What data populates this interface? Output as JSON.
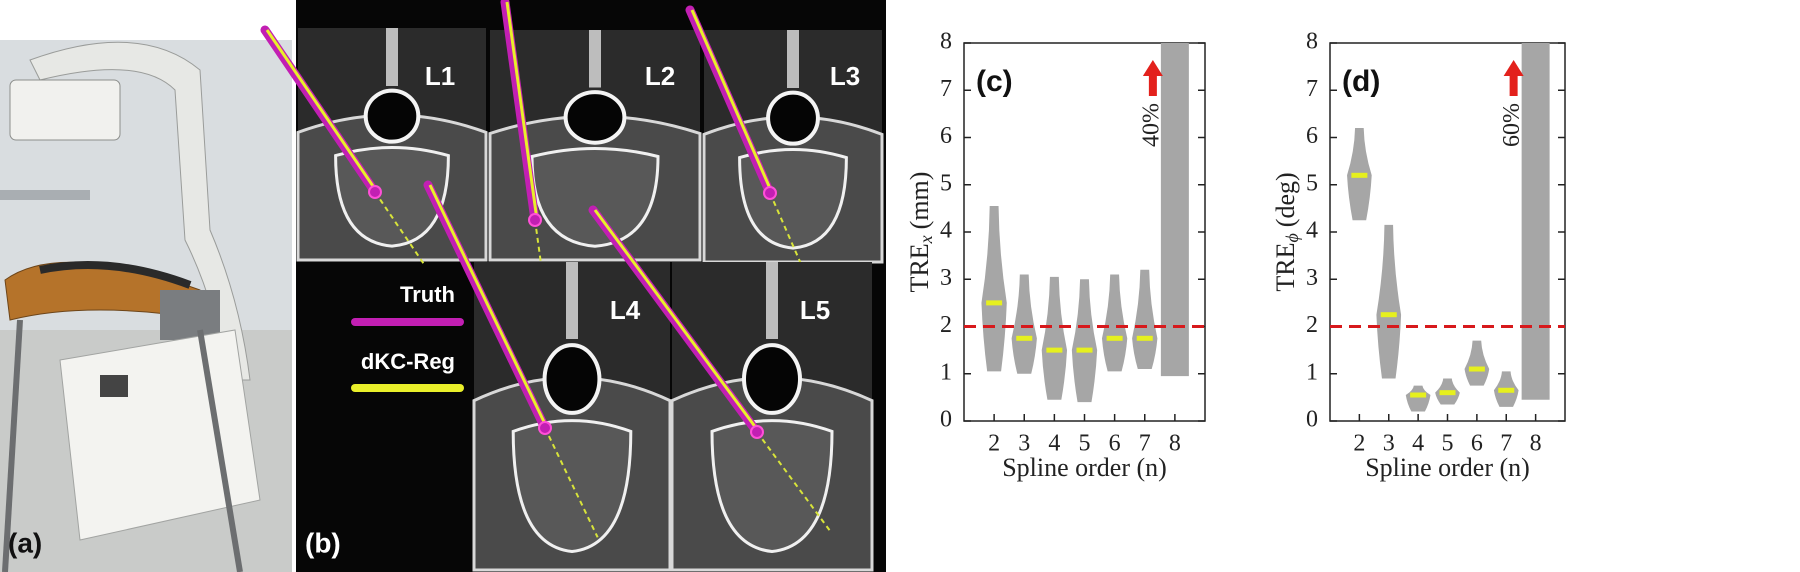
{
  "panels": {
    "a": {
      "label": "(a)"
    },
    "b": {
      "label": "(b)",
      "levels": [
        "L1",
        "L2",
        "L3",
        "L4",
        "L5"
      ],
      "legend": [
        "Truth",
        "dKC-Reg"
      ]
    }
  },
  "chart_data": [
    {
      "type": "violin",
      "panel_label": "(c)",
      "ylabel": "TRE",
      "ylabel_sub": "x",
      "ylabel_unit": "(mm)",
      "xlabel": "Spline order (n)",
      "categories": [
        "2",
        "3",
        "4",
        "5",
        "6",
        "7",
        "8"
      ],
      "mins": [
        1.05,
        1.0,
        0.45,
        0.4,
        1.05,
        1.1,
        0.95
      ],
      "maxs": [
        4.55,
        3.1,
        3.05,
        3.0,
        3.1,
        3.2,
        null
      ],
      "medians": [
        2.5,
        1.75,
        1.5,
        1.5,
        1.75,
        1.75,
        null
      ],
      "color": "#a6a6a6",
      "median_color": "#e6f01e",
      "threshold": 2,
      "threshold_color": "#d7191c",
      "annotation": {
        "category": 6,
        "text": "40%"
      },
      "ylim": [
        0,
        8
      ],
      "yticks": [
        0,
        1,
        2,
        3,
        4,
        5,
        6,
        7,
        8
      ]
    },
    {
      "type": "violin",
      "panel_label": "(d)",
      "ylabel": "TRE",
      "ylabel_sub": "ϕ",
      "ylabel_unit": "(deg)",
      "xlabel": "Spline order (n)",
      "categories": [
        "2",
        "3",
        "4",
        "5",
        "6",
        "7",
        "8"
      ],
      "mins": [
        4.25,
        0.9,
        0.2,
        0.35,
        0.75,
        0.3,
        0.45
      ],
      "maxs": [
        6.2,
        4.15,
        0.75,
        0.9,
        1.7,
        1.05,
        null
      ],
      "medians": [
        5.2,
        2.25,
        0.55,
        0.6,
        1.1,
        0.65,
        null
      ],
      "color": "#a6a6a6",
      "median_color": "#e6f01e",
      "threshold": 2,
      "threshold_color": "#d7191c",
      "annotation": {
        "category": 6,
        "text": "60%"
      },
      "ylim": [
        0,
        8
      ],
      "yticks": [
        0,
        1,
        2,
        3,
        4,
        5,
        6,
        7,
        8
      ]
    }
  ]
}
